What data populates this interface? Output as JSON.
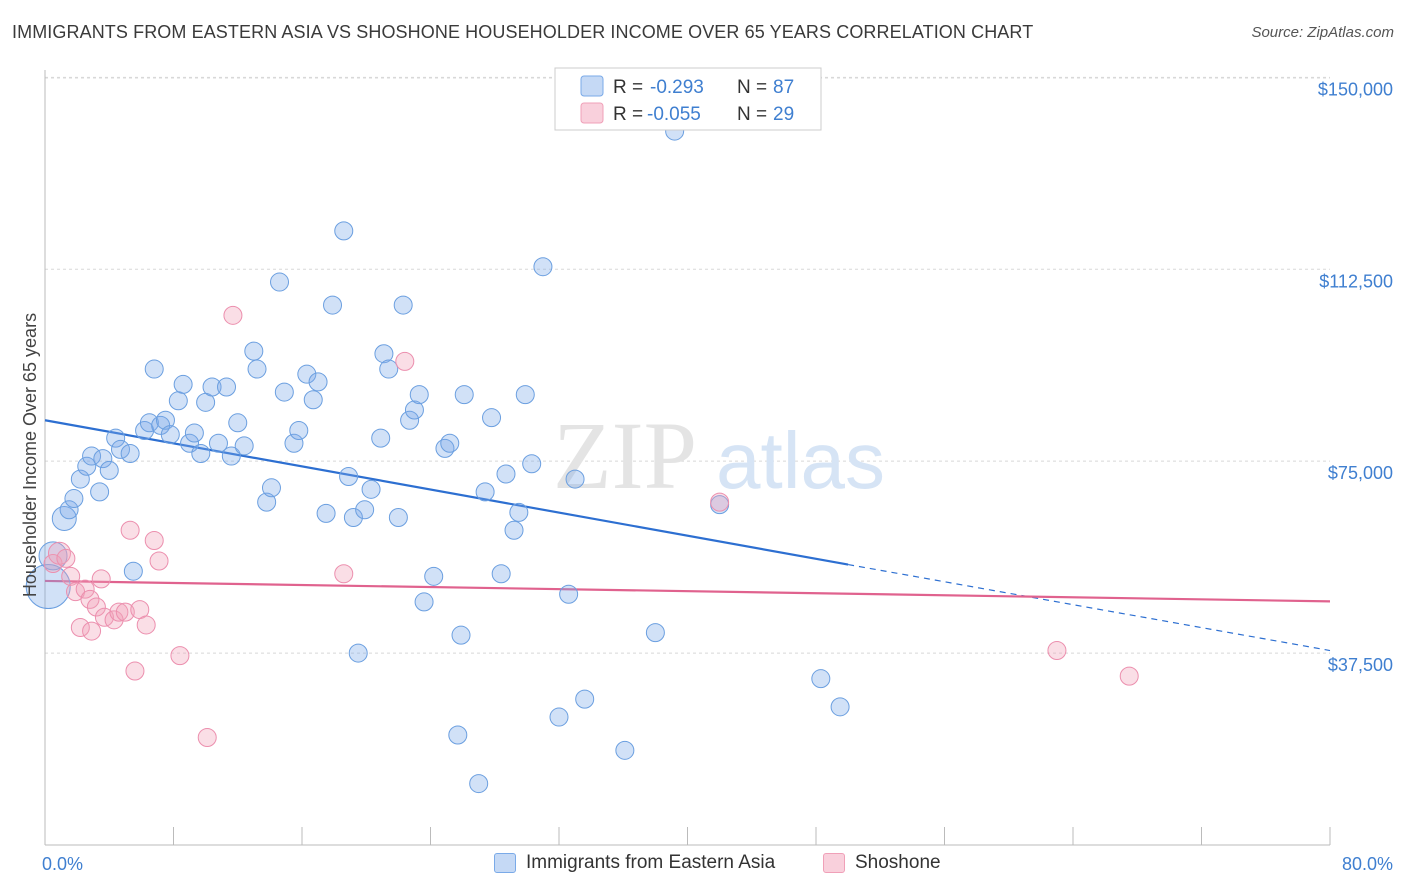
{
  "title": "IMMIGRANTS FROM EASTERN ASIA VS SHOSHONE HOUSEHOLDER INCOME OVER 65 YEARS CORRELATION CHART",
  "source": "Source: ZipAtlas.com",
  "watermark": {
    "zip": "ZIP",
    "atlas": "atlas"
  },
  "colors": {
    "blue": "#7aaae8",
    "blue_line": "#2d6fd1",
    "pink": "#f0a0b8",
    "pink_line": "#e0628e",
    "tick": "#3f7fd0"
  },
  "legend": {
    "items": [
      {
        "r_label": "R =",
        "r_value": "-0.293",
        "n_label": "N =",
        "n_value": "87",
        "color": "#7aaae8"
      },
      {
        "r_label": "R =",
        "r_value": "-0.055",
        "n_label": "N =",
        "n_value": "29",
        "color": "#f0a0b8"
      }
    ]
  },
  "bottom_legend": [
    {
      "label": "Immigrants from Eastern Asia",
      "color": "#7aaae8"
    },
    {
      "label": "Shoshone",
      "color": "#f0a0b8"
    }
  ],
  "chart_data": {
    "type": "scatter",
    "title": "IMMIGRANTS FROM EASTERN ASIA VS SHOSHONE HOUSEHOLDER INCOME OVER 65 YEARS CORRELATION CHART",
    "xlabel": "",
    "ylabel": "Householder Income Over 65 years",
    "xlim": [
      0,
      80
    ],
    "ylim": [
      0,
      153000
    ],
    "x_tick_labels": [
      "0.0%",
      "80.0%"
    ],
    "y_ticks": [
      37500,
      75000,
      112500,
      150000
    ],
    "y_tick_labels": [
      "$37,500",
      "$75,000",
      "$112,500",
      "$150,000"
    ],
    "grid": true,
    "legend_position": "top-center",
    "series": [
      {
        "name": "Immigrants from Eastern Asia",
        "color": "#7aaae8",
        "points": [
          [
            0.2,
            50500
          ],
          [
            0.5,
            56500
          ],
          [
            1.2,
            63800
          ],
          [
            1.5,
            65500
          ],
          [
            1.8,
            67700
          ],
          [
            2.2,
            71500
          ],
          [
            2.6,
            74000
          ],
          [
            2.9,
            76000
          ],
          [
            3.4,
            69000
          ],
          [
            3.6,
            75500
          ],
          [
            4.0,
            73200
          ],
          [
            4.4,
            79500
          ],
          [
            4.7,
            77300
          ],
          [
            5.3,
            76500
          ],
          [
            5.5,
            53500
          ],
          [
            6.2,
            81000
          ],
          [
            6.5,
            82500
          ],
          [
            6.8,
            93000
          ],
          [
            7.2,
            82000
          ],
          [
            7.5,
            83000
          ],
          [
            7.8,
            80200
          ],
          [
            8.3,
            86800
          ],
          [
            8.6,
            90000
          ],
          [
            9.0,
            78500
          ],
          [
            9.3,
            80500
          ],
          [
            9.7,
            76500
          ],
          [
            10.0,
            86500
          ],
          [
            10.4,
            89500
          ],
          [
            10.8,
            78500
          ],
          [
            11.3,
            89500
          ],
          [
            11.6,
            76000
          ],
          [
            12.0,
            82500
          ],
          [
            12.4,
            78000
          ],
          [
            13.0,
            96500
          ],
          [
            13.2,
            93000
          ],
          [
            13.8,
            67000
          ],
          [
            14.1,
            69800
          ],
          [
            14.6,
            110000
          ],
          [
            14.9,
            88500
          ],
          [
            15.5,
            78500
          ],
          [
            15.8,
            81000
          ],
          [
            16.3,
            92000
          ],
          [
            16.7,
            87000
          ],
          [
            17.0,
            90500
          ],
          [
            17.5,
            64800
          ],
          [
            17.9,
            105500
          ],
          [
            18.6,
            120000
          ],
          [
            18.9,
            72000
          ],
          [
            19.2,
            64000
          ],
          [
            19.5,
            37500
          ],
          [
            19.9,
            65500
          ],
          [
            20.3,
            69500
          ],
          [
            20.9,
            79500
          ],
          [
            21.1,
            96000
          ],
          [
            21.4,
            93000
          ],
          [
            22.0,
            64000
          ],
          [
            22.3,
            105500
          ],
          [
            22.7,
            83000
          ],
          [
            23.0,
            85000
          ],
          [
            23.3,
            88000
          ],
          [
            23.6,
            47500
          ],
          [
            24.2,
            52500
          ],
          [
            24.9,
            77500
          ],
          [
            25.2,
            78500
          ],
          [
            25.7,
            21500
          ],
          [
            25.9,
            41000
          ],
          [
            26.1,
            88000
          ],
          [
            27.0,
            12000
          ],
          [
            27.4,
            69000
          ],
          [
            27.8,
            83500
          ],
          [
            28.4,
            53000
          ],
          [
            28.7,
            72500
          ],
          [
            29.2,
            61500
          ],
          [
            29.5,
            65000
          ],
          [
            29.9,
            88000
          ],
          [
            30.3,
            74500
          ],
          [
            31.0,
            113000
          ],
          [
            32.0,
            25000
          ],
          [
            32.6,
            49000
          ],
          [
            33.0,
            71500
          ],
          [
            33.6,
            28500
          ],
          [
            36.1,
            18500
          ],
          [
            38.0,
            41500
          ],
          [
            39.2,
            139500
          ],
          [
            42.0,
            66500
          ],
          [
            48.3,
            32500
          ],
          [
            49.5,
            27000
          ]
        ]
      },
      {
        "name": "Shoshone",
        "color": "#f0a0b8",
        "points": [
          [
            0.5,
            55000
          ],
          [
            0.9,
            57000
          ],
          [
            1.3,
            56000
          ],
          [
            1.6,
            52500
          ],
          [
            1.9,
            49500
          ],
          [
            2.2,
            42500
          ],
          [
            2.5,
            50000
          ],
          [
            2.8,
            48000
          ],
          [
            3.2,
            46500
          ],
          [
            3.5,
            52000
          ],
          [
            3.7,
            44500
          ],
          [
            4.3,
            44000
          ],
          [
            4.6,
            45500
          ],
          [
            5.0,
            45500
          ],
          [
            5.6,
            34000
          ],
          [
            5.9,
            46000
          ],
          [
            5.3,
            61500
          ],
          [
            6.3,
            43000
          ],
          [
            6.8,
            59500
          ],
          [
            7.1,
            55500
          ],
          [
            8.4,
            37000
          ],
          [
            10.1,
            21000
          ],
          [
            11.7,
            103500
          ],
          [
            18.6,
            53000
          ],
          [
            22.4,
            94500
          ],
          [
            42.0,
            67000
          ],
          [
            63.0,
            38000
          ],
          [
            67.5,
            33000
          ],
          [
            2.9,
            41800
          ]
        ]
      }
    ],
    "trend_lines": [
      {
        "series": "Immigrants from Eastern Asia",
        "solid": [
          [
            0,
            83000
          ],
          [
            50,
            54800
          ]
        ],
        "dashed": [
          [
            50,
            54800
          ],
          [
            80,
            38000
          ]
        ]
      },
      {
        "series": "Shoshone",
        "solid": [
          [
            0,
            51600
          ],
          [
            80,
            47600
          ]
        ]
      }
    ]
  }
}
